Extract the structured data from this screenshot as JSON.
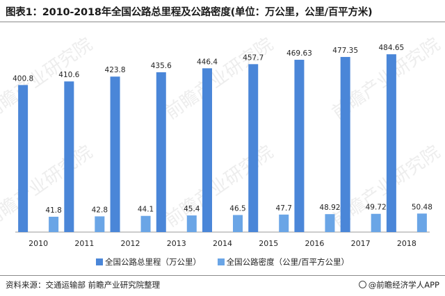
{
  "title": "图表1：2010-2018年全国公路总里程及公路密度(单位：万公里，公里/百平方米)",
  "source": "资料来源：交通运输部 前瞻产业研究院整理",
  "brand": "@前瞻经济学人APP",
  "watermark": "前瞻产业研究院",
  "colors": {
    "series1": "#4a86d8",
    "series2": "#6aa5e6"
  },
  "chart_data": {
    "type": "bar",
    "categories": [
      "2010",
      "2011",
      "2012",
      "2013",
      "2014",
      "2015",
      "2016",
      "2017",
      "2018"
    ],
    "series": [
      {
        "name": "全国公路总里程（万公里）",
        "values": [
          400.8,
          410.6,
          423.8,
          435.6,
          446.4,
          457.7,
          469.63,
          477.35,
          484.65
        ],
        "labels": [
          "400.8",
          "410.6",
          "423.8",
          "435.6",
          "446.4",
          "457.7",
          "469.63",
          "477.35",
          "484.65"
        ]
      },
      {
        "name": "全国公路密度（公里/百平方公里）",
        "values": [
          41.8,
          42.8,
          44.1,
          45.4,
          46.5,
          47.7,
          48.92,
          49.72,
          50.48
        ],
        "labels": [
          "41.8",
          "42.8",
          "44.1",
          "45.4",
          "46.5",
          "47.7",
          "48.92",
          "49.72",
          "50.48"
        ]
      }
    ],
    "title": "图表1：2010-2018年全国公路总里程及公路密度(单位：万公里，公里/百平方米)",
    "legend_position": "bottom",
    "grid": false
  }
}
